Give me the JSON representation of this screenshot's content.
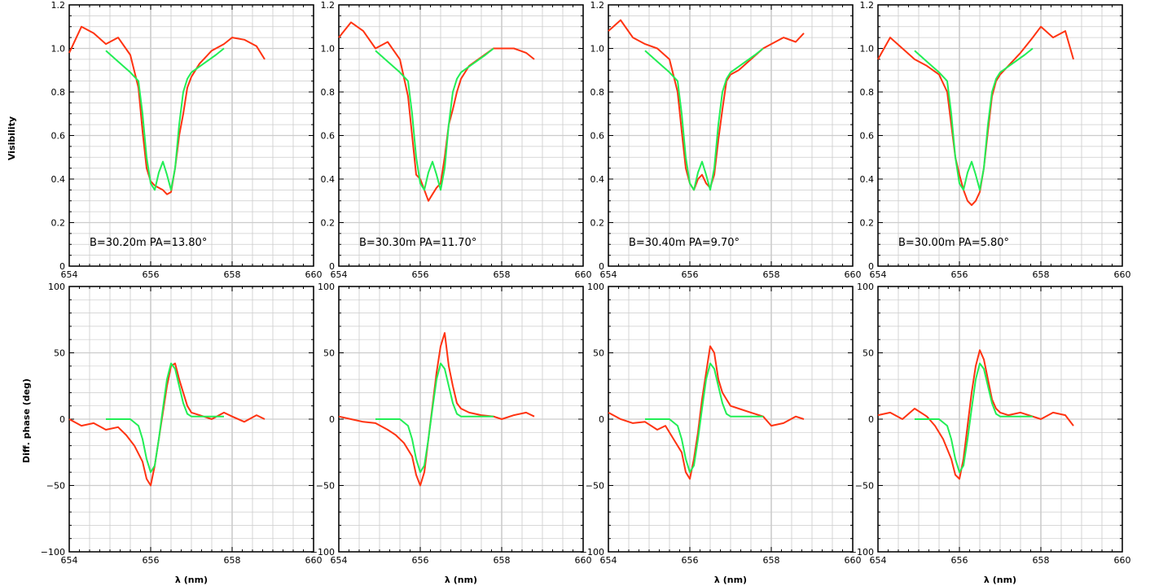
{
  "figure": {
    "vis_ylabel": "Visibility",
    "phase_ylabel": "Diff. phase (deg)",
    "xlabel": "λ (nm)",
    "colors": {
      "observed": "#ff3311",
      "model": "#22ee55",
      "grid": "#cccccc",
      "axis": "#000000"
    }
  },
  "chart_data": [
    {
      "type": "line",
      "row": "visibility",
      "panel": 1,
      "annotation": "B=30.20m  PA=13.80°",
      "xlim": [
        654,
        660
      ],
      "ylim": [
        0,
        1.2
      ],
      "xticks": [
        654,
        656,
        658,
        660
      ],
      "yticks": [
        0,
        0.2,
        0.4,
        0.6,
        0.8,
        1.0,
        1.2
      ],
      "ytick_labels": [
        "0",
        "0.2",
        "0.4",
        "0.6",
        "0.8",
        "1.0",
        "1.2"
      ],
      "grid": true,
      "series": [
        {
          "x": [
            654.0,
            654.3,
            654.6,
            654.9,
            655.2,
            655.5,
            655.7,
            655.8,
            655.9,
            656.0,
            656.1,
            656.2,
            656.3,
            656.4,
            656.5,
            656.6,
            656.7,
            656.8,
            656.9,
            657.0,
            657.2,
            657.5,
            657.8,
            658.0,
            658.3,
            658.6,
            658.8
          ],
          "y": [
            0.98,
            1.1,
            1.07,
            1.02,
            1.05,
            0.97,
            0.82,
            0.62,
            0.45,
            0.39,
            0.37,
            0.36,
            0.35,
            0.33,
            0.34,
            0.45,
            0.6,
            0.7,
            0.82,
            0.87,
            0.93,
            0.99,
            1.02,
            1.05,
            1.04,
            1.01,
            0.95
          ]
        },
        {
          "x": [
            654.9,
            655.2,
            655.5,
            655.7,
            655.8,
            655.9,
            656.0,
            656.1,
            656.2,
            656.3,
            656.4,
            656.5,
            656.6,
            656.7,
            656.8,
            656.9,
            657.0,
            657.3,
            657.6,
            657.8
          ],
          "y": [
            0.99,
            0.94,
            0.89,
            0.85,
            0.7,
            0.5,
            0.38,
            0.35,
            0.43,
            0.48,
            0.42,
            0.35,
            0.45,
            0.65,
            0.8,
            0.86,
            0.89,
            0.93,
            0.97,
            1.0
          ]
        }
      ]
    },
    {
      "type": "line",
      "row": "visibility",
      "panel": 2,
      "annotation": "B=30.30m  PA=11.70°",
      "xlim": [
        654,
        660
      ],
      "ylim": [
        0,
        1.2
      ],
      "xticks": [
        654,
        656,
        658,
        660
      ],
      "yticks": [
        0,
        0.2,
        0.4,
        0.6,
        0.8,
        1.0,
        1.2
      ],
      "ytick_labels": [
        "0",
        "0.2",
        "0.4",
        "0.6",
        "0.8",
        "1.0",
        "1.2"
      ],
      "grid": true,
      "series": [
        {
          "x": [
            654.0,
            654.3,
            654.6,
            654.9,
            655.2,
            655.5,
            655.7,
            655.8,
            655.9,
            656.0,
            656.1,
            656.2,
            656.3,
            656.4,
            656.5,
            656.6,
            656.7,
            656.8,
            656.9,
            657.0,
            657.2,
            657.5,
            657.8,
            658.0,
            658.3,
            658.6,
            658.8
          ],
          "y": [
            1.05,
            1.12,
            1.08,
            1.0,
            1.03,
            0.95,
            0.78,
            0.6,
            0.42,
            0.4,
            0.35,
            0.3,
            0.33,
            0.36,
            0.38,
            0.5,
            0.65,
            0.72,
            0.8,
            0.86,
            0.92,
            0.96,
            1.0,
            1.0,
            1.0,
            0.98,
            0.95
          ]
        },
        {
          "x": [
            654.9,
            655.2,
            655.5,
            655.7,
            655.8,
            655.9,
            656.0,
            656.1,
            656.2,
            656.3,
            656.4,
            656.5,
            656.6,
            656.7,
            656.8,
            656.9,
            657.0,
            657.3,
            657.6,
            657.8
          ],
          "y": [
            0.99,
            0.94,
            0.89,
            0.85,
            0.7,
            0.5,
            0.38,
            0.35,
            0.43,
            0.48,
            0.42,
            0.35,
            0.45,
            0.65,
            0.8,
            0.86,
            0.89,
            0.93,
            0.97,
            1.0
          ]
        }
      ]
    },
    {
      "type": "line",
      "row": "visibility",
      "panel": 3,
      "annotation": "B=30.40m  PA=9.70°",
      "xlim": [
        654,
        660
      ],
      "ylim": [
        0,
        1.2
      ],
      "xticks": [
        654,
        656,
        658,
        660
      ],
      "yticks": [
        0,
        0.2,
        0.4,
        0.6,
        0.8,
        1.0,
        1.2
      ],
      "ytick_labels": [
        "0",
        "0.2",
        "0.4",
        "0.6",
        "0.8",
        "1.0",
        "1.2"
      ],
      "grid": true,
      "series": [
        {
          "x": [
            654.0,
            654.3,
            654.6,
            654.9,
            655.2,
            655.5,
            655.7,
            655.8,
            655.9,
            656.0,
            656.1,
            656.2,
            656.3,
            656.4,
            656.5,
            656.6,
            656.7,
            656.8,
            656.9,
            657.0,
            657.2,
            657.5,
            657.8,
            658.0,
            658.3,
            658.6,
            658.8
          ],
          "y": [
            1.08,
            1.13,
            1.05,
            1.02,
            1.0,
            0.95,
            0.8,
            0.62,
            0.45,
            0.38,
            0.35,
            0.4,
            0.42,
            0.38,
            0.36,
            0.42,
            0.58,
            0.72,
            0.85,
            0.88,
            0.9,
            0.95,
            1.0,
            1.02,
            1.05,
            1.03,
            1.07
          ]
        },
        {
          "x": [
            654.9,
            655.2,
            655.5,
            655.7,
            655.8,
            655.9,
            656.0,
            656.1,
            656.2,
            656.3,
            656.4,
            656.5,
            656.6,
            656.7,
            656.8,
            656.9,
            657.0,
            657.3,
            657.6,
            657.8
          ],
          "y": [
            0.99,
            0.94,
            0.89,
            0.85,
            0.7,
            0.5,
            0.38,
            0.35,
            0.43,
            0.48,
            0.42,
            0.35,
            0.45,
            0.65,
            0.8,
            0.86,
            0.89,
            0.93,
            0.97,
            1.0
          ]
        }
      ]
    },
    {
      "type": "line",
      "row": "visibility",
      "panel": 4,
      "annotation": "B=30.00m  PA=5.80°",
      "xlim": [
        654,
        660
      ],
      "ylim": [
        0,
        1.2
      ],
      "xticks": [
        654,
        656,
        658,
        660
      ],
      "yticks": [
        0,
        0.2,
        0.4,
        0.6,
        0.8,
        1.0,
        1.2
      ],
      "ytick_labels": [
        "0",
        "0.2",
        "0.4",
        "0.6",
        "0.8",
        "1.0",
        "1.2"
      ],
      "grid": true,
      "series": [
        {
          "x": [
            654.0,
            654.3,
            654.6,
            654.9,
            655.2,
            655.5,
            655.7,
            655.8,
            655.9,
            656.0,
            656.1,
            656.2,
            656.3,
            656.4,
            656.5,
            656.6,
            656.7,
            656.8,
            656.9,
            657.0,
            657.2,
            657.5,
            657.8,
            658.0,
            658.3,
            658.6,
            658.8
          ],
          "y": [
            0.95,
            1.05,
            1.0,
            0.95,
            0.92,
            0.88,
            0.8,
            0.65,
            0.5,
            0.42,
            0.35,
            0.3,
            0.28,
            0.3,
            0.34,
            0.45,
            0.62,
            0.78,
            0.85,
            0.88,
            0.92,
            0.98,
            1.05,
            1.1,
            1.05,
            1.08,
            0.95
          ]
        },
        {
          "x": [
            654.9,
            655.2,
            655.5,
            655.7,
            655.8,
            655.9,
            656.0,
            656.1,
            656.2,
            656.3,
            656.4,
            656.5,
            656.6,
            656.7,
            656.8,
            656.9,
            657.0,
            657.3,
            657.6,
            657.8
          ],
          "y": [
            0.99,
            0.94,
            0.89,
            0.85,
            0.7,
            0.5,
            0.38,
            0.35,
            0.43,
            0.48,
            0.42,
            0.35,
            0.45,
            0.65,
            0.8,
            0.86,
            0.89,
            0.93,
            0.97,
            1.0
          ]
        }
      ]
    },
    {
      "type": "line",
      "row": "phase",
      "panel": 1,
      "xlim": [
        654,
        660
      ],
      "ylim": [
        -100,
        100
      ],
      "xticks": [
        654,
        656,
        658,
        660
      ],
      "yticks": [
        -100,
        -50,
        0,
        50,
        100
      ],
      "ytick_labels": [
        "−100",
        "−50",
        "0",
        "50",
        "100"
      ],
      "grid": true,
      "series": [
        {
          "x": [
            654.0,
            654.3,
            654.6,
            654.9,
            655.2,
            655.4,
            655.6,
            655.8,
            655.9,
            656.0,
            656.1,
            656.2,
            656.3,
            656.4,
            656.5,
            656.6,
            656.7,
            656.8,
            656.9,
            657.0,
            657.2,
            657.5,
            657.8,
            658.0,
            658.3,
            658.6,
            658.8
          ],
          "y": [
            0,
            -5,
            -3,
            -8,
            -6,
            -12,
            -20,
            -32,
            -45,
            -50,
            -35,
            -15,
            5,
            25,
            40,
            42,
            30,
            20,
            10,
            5,
            3,
            0,
            5,
            2,
            -2,
            3,
            0
          ]
        },
        {
          "x": [
            654.9,
            655.5,
            655.7,
            655.8,
            655.9,
            656.0,
            656.1,
            656.2,
            656.3,
            656.4,
            656.5,
            656.6,
            656.7,
            656.8,
            656.9,
            657.0,
            657.3,
            657.6,
            657.8
          ],
          "y": [
            0,
            0,
            -5,
            -15,
            -30,
            -40,
            -35,
            -15,
            8,
            30,
            42,
            38,
            25,
            12,
            4,
            2,
            2,
            2,
            2
          ]
        }
      ]
    },
    {
      "type": "line",
      "row": "phase",
      "panel": 2,
      "xlim": [
        654,
        660
      ],
      "ylim": [
        -100,
        100
      ],
      "xticks": [
        654,
        656,
        658,
        660
      ],
      "yticks": [
        -100,
        -50,
        0,
        50,
        100
      ],
      "ytick_labels": [
        "−100",
        "−50",
        "0",
        "50",
        "100"
      ],
      "grid": true,
      "series": [
        {
          "x": [
            654.0,
            654.3,
            654.6,
            654.9,
            655.2,
            655.4,
            655.6,
            655.8,
            655.9,
            656.0,
            656.1,
            656.2,
            656.3,
            656.4,
            656.5,
            656.6,
            656.7,
            656.8,
            656.9,
            657.0,
            657.2,
            657.5,
            657.8,
            658.0,
            658.3,
            658.6,
            658.8
          ],
          "y": [
            2,
            0,
            -2,
            -3,
            -8,
            -12,
            -18,
            -28,
            -42,
            -50,
            -40,
            -15,
            10,
            35,
            55,
            65,
            40,
            25,
            12,
            8,
            5,
            3,
            2,
            0,
            3,
            5,
            2
          ]
        },
        {
          "x": [
            654.9,
            655.5,
            655.7,
            655.8,
            655.9,
            656.0,
            656.1,
            656.2,
            656.3,
            656.4,
            656.5,
            656.6,
            656.7,
            656.8,
            656.9,
            657.0,
            657.3,
            657.6,
            657.8
          ],
          "y": [
            0,
            0,
            -5,
            -15,
            -30,
            -40,
            -35,
            -15,
            8,
            30,
            42,
            38,
            25,
            12,
            4,
            2,
            2,
            2,
            2
          ]
        }
      ]
    },
    {
      "type": "line",
      "row": "phase",
      "panel": 3,
      "xlim": [
        654,
        660
      ],
      "ylim": [
        -100,
        100
      ],
      "xticks": [
        654,
        656,
        658,
        660
      ],
      "yticks": [
        -100,
        -50,
        0,
        50,
        100
      ],
      "ytick_labels": [
        "−100",
        "−50",
        "0",
        "50",
        "100"
      ],
      "grid": true,
      "series": [
        {
          "x": [
            654.0,
            654.3,
            654.6,
            654.9,
            655.2,
            655.4,
            655.6,
            655.8,
            655.9,
            656.0,
            656.1,
            656.2,
            656.3,
            656.4,
            656.5,
            656.6,
            656.7,
            656.8,
            656.9,
            657.0,
            657.2,
            657.5,
            657.8,
            658.0,
            658.3,
            658.6,
            658.8
          ],
          "y": [
            5,
            0,
            -3,
            -2,
            -8,
            -5,
            -15,
            -25,
            -40,
            -45,
            -30,
            -10,
            15,
            35,
            55,
            50,
            30,
            20,
            15,
            10,
            8,
            5,
            2,
            -5,
            -3,
            2,
            0
          ]
        },
        {
          "x": [
            654.9,
            655.5,
            655.7,
            655.8,
            655.9,
            656.0,
            656.1,
            656.2,
            656.3,
            656.4,
            656.5,
            656.6,
            656.7,
            656.8,
            656.9,
            657.0,
            657.3,
            657.6,
            657.8
          ],
          "y": [
            0,
            0,
            -5,
            -15,
            -30,
            -40,
            -35,
            -15,
            8,
            30,
            42,
            38,
            25,
            12,
            4,
            2,
            2,
            2,
            2
          ]
        }
      ]
    },
    {
      "type": "line",
      "row": "phase",
      "panel": 4,
      "xlim": [
        654,
        660
      ],
      "ylim": [
        -100,
        100
      ],
      "xticks": [
        654,
        656,
        658,
        660
      ],
      "yticks": [
        -100,
        -50,
        0,
        50,
        100
      ],
      "ytick_labels": [
        "−100",
        "−50",
        "0",
        "50",
        "100"
      ],
      "grid": true,
      "series": [
        {
          "x": [
            654.0,
            654.3,
            654.6,
            654.9,
            655.2,
            655.4,
            655.6,
            655.8,
            655.9,
            656.0,
            656.1,
            656.2,
            656.3,
            656.4,
            656.5,
            656.6,
            656.7,
            656.8,
            656.9,
            657.0,
            657.2,
            657.5,
            657.8,
            658.0,
            658.3,
            658.6,
            658.8
          ],
          "y": [
            3,
            5,
            0,
            8,
            2,
            -5,
            -15,
            -30,
            -42,
            -45,
            -30,
            -5,
            20,
            40,
            52,
            45,
            30,
            15,
            8,
            5,
            3,
            5,
            2,
            0,
            5,
            3,
            -5
          ]
        },
        {
          "x": [
            654.9,
            655.5,
            655.7,
            655.8,
            655.9,
            656.0,
            656.1,
            656.2,
            656.3,
            656.4,
            656.5,
            656.6,
            656.7,
            656.8,
            656.9,
            657.0,
            657.3,
            657.6,
            657.8
          ],
          "y": [
            0,
            0,
            -5,
            -15,
            -30,
            -40,
            -35,
            -15,
            8,
            30,
            42,
            38,
            25,
            12,
            4,
            2,
            2,
            2,
            2
          ]
        }
      ]
    }
  ]
}
